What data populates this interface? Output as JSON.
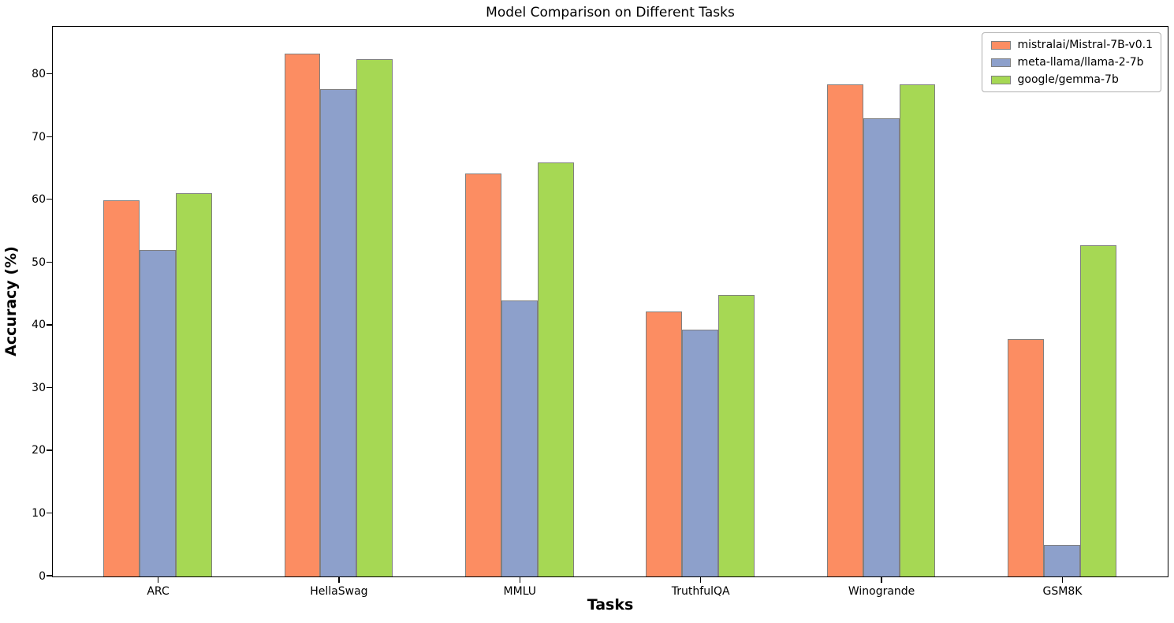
{
  "figure": {
    "title": "Model Comparison on Different Tasks",
    "xlabel": "Tasks",
    "ylabel": "Accuracy (%)"
  },
  "chart_data": {
    "type": "bar",
    "title": "Model Comparison on Different Tasks",
    "xlabel": "Tasks",
    "ylabel": "Accuracy (%)",
    "categories": [
      "ARC",
      "HellaSwag",
      "MMLU",
      "TruthfulQA",
      "Winogrande",
      "GSM8K"
    ],
    "series": [
      {
        "name": "mistralai/Mistral-7B-v0.1",
        "color": "#FC8D62",
        "values": [
          60.0,
          83.3,
          64.2,
          42.2,
          78.4,
          37.8
        ]
      },
      {
        "name": "meta-llama/llama-2-7b",
        "color": "#8DA0CB",
        "values": [
          52.1,
          77.7,
          44.0,
          39.3,
          73.0,
          5.0
        ]
      },
      {
        "name": "google/gemma-7b",
        "color": "#A6D854",
        "values": [
          61.1,
          82.5,
          66.0,
          44.9,
          78.5,
          52.8
        ]
      }
    ],
    "ylim": [
      0,
      87.5
    ],
    "yticks": [
      0,
      10,
      20,
      30,
      40,
      50,
      60,
      70,
      80
    ],
    "bar_edge_color": "#808080",
    "axis_color": "#000000",
    "legend_position": "upper right",
    "grid": false
  }
}
